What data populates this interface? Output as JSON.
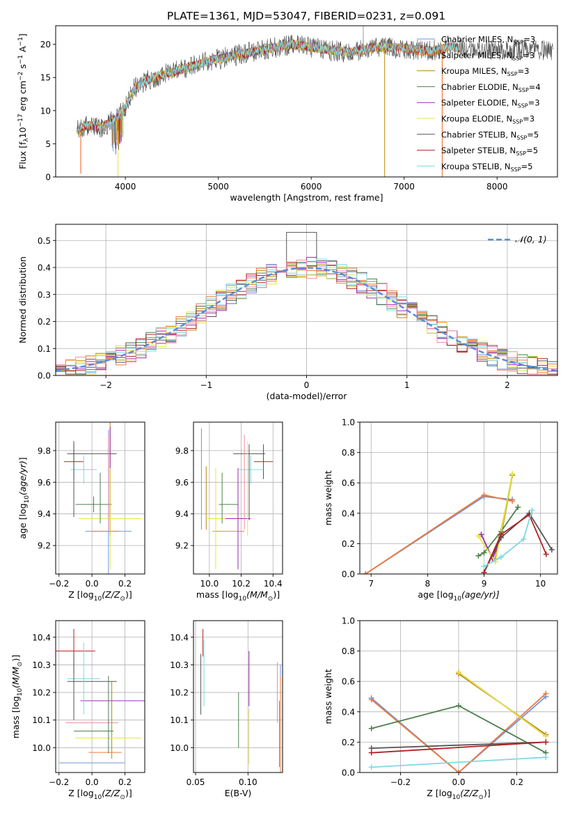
{
  "colors": {
    "chabrier_miles": "#6f95dc",
    "salpeter_miles": "#ef7a3b",
    "kroupa_miles": "#b8860b",
    "chabrier_elodie": "#4c7f4c",
    "salpeter_elodie": "#9c27b0",
    "kroupa_elodie": "#e6e640",
    "chabrier_stelib": "#555555",
    "salpeter_stelib": "#b22222",
    "kroupa_stelib": "#7fd8e0",
    "pink": "#f08aa0",
    "normal_curve": "#5b8bd9",
    "grid": "#b0b0b0"
  },
  "chart_data": [
    {
      "id": "spectrum",
      "type": "line",
      "title": "PLATE=1361, MJD=53047, FIBERID=0231, z=0.091",
      "xlabel": "wavelength [Angstrom, rest frame]",
      "ylabel": "Flux [f_λ10^-17 erg cm^-2 s^-1 A^-1]",
      "xlim": [
        3250,
        8650
      ],
      "ylim": [
        0,
        22.8
      ],
      "xticks": [
        "4000",
        "5000",
        "6000",
        "7000",
        "8000"
      ],
      "yticks": [
        "0",
        "5",
        "10",
        "15",
        "20"
      ],
      "grid": false,
      "legend_position": "top-right",
      "continuum": {
        "x": [
          3480,
          3600,
          3750,
          3900,
          4000,
          4100,
          4300,
          4600,
          4900,
          5200,
          5500,
          5800,
          6100,
          6400,
          6700,
          7000,
          7300,
          7500,
          7700
        ],
        "y": [
          7,
          7.8,
          7.5,
          8.8,
          10.5,
          13.5,
          15,
          16.2,
          17.5,
          18.4,
          19.2,
          20,
          19.3,
          18.8,
          19.6,
          19.4,
          19,
          19.6,
          19.2
        ]
      },
      "series": [
        {
          "name": "Chabrier MILES, N_SSP=3",
          "label_main": "Chabrier MILES, N",
          "label_sub": "SSP",
          "label_tail": "=3",
          "color_key": "chabrier_miles",
          "xmax": 7600
        },
        {
          "name": "Salpeter MILES, N_SSP=3",
          "label_main": "Salpeter MILES, N",
          "label_sub": "SSP",
          "label_tail": "=3",
          "color_key": "salpeter_miles",
          "xmax": 7600
        },
        {
          "name": "Kroupa MILES, N_SSP=3",
          "label_main": "Kroupa MILES, N",
          "label_sub": "SSP",
          "label_tail": "=3",
          "color_key": "kroupa_miles",
          "xmax": 7600
        },
        {
          "name": "Chabrier ELODIE, N_SSP=4",
          "label_main": "Chabrier ELODIE, N",
          "label_sub": "SSP",
          "label_tail": "=4",
          "color_key": "chabrier_elodie",
          "xmax": 6800
        },
        {
          "name": "Salpeter ELODIE, N_SSP=3",
          "label_main": "Salpeter ELODIE, N",
          "label_sub": "SSP",
          "label_tail": "=3",
          "color_key": "salpeter_elodie",
          "xmax": 6800
        },
        {
          "name": "Kroupa ELODIE, N_SSP=3",
          "label_main": "Kroupa ELODIE, N",
          "label_sub": "SSP",
          "label_tail": "=3",
          "color_key": "kroupa_elodie",
          "xmax": 6800
        },
        {
          "name": "Chabrier STELIB, N_SSP=5",
          "label_main": "Chabrier STELIB, N",
          "label_sub": "SSP",
          "label_tail": "=5",
          "color_key": "chabrier_stelib",
          "xmax": 8600
        },
        {
          "name": "Salpeter STELIB, N_SSP=5",
          "label_main": "Salpeter STELIB, N",
          "label_sub": "SSP",
          "label_tail": "=5",
          "color_key": "salpeter_stelib",
          "xmax": 7600
        },
        {
          "name": "Kroupa STELIB, N_SSP=5",
          "label_main": "Kroupa STELIB, N",
          "label_sub": "SSP",
          "label_tail": "=5",
          "color_key": "kroupa_stelib",
          "xmax": 7600
        }
      ]
    },
    {
      "id": "residuals",
      "type": "area",
      "xlabel": "(data-model)/error",
      "ylabel": "Normed distribution",
      "xlim": [
        -2.5,
        2.5
      ],
      "ylim": [
        0,
        0.56
      ],
      "xticks": [
        "−2",
        "−1",
        "0",
        "1",
        "2"
      ],
      "yticks": [
        "0.0",
        "0.1",
        "0.2",
        "0.3",
        "0.4",
        "0.5"
      ],
      "grid": true,
      "legend_position": "top-right",
      "legend": "𝒩(0, 1)",
      "bin_width": 0.1,
      "normal": {
        "mean": 0,
        "sigma": 1
      }
    },
    {
      "id": "z-age",
      "type": "scatter",
      "xlabel": "Z [log10(Z/Z⊙)]",
      "xlabel_main": "Z [log",
      "xlabel_sub": "10",
      "xlabel_tail": "(Z/Z",
      "xlabel_sym": "⊙",
      "xlabel_end": ")]",
      "ylabel": "age [log10(age/yr)]",
      "xlim": [
        -0.22,
        0.32
      ],
      "ylim": [
        9.02,
        9.98
      ],
      "xticks": [
        "−0.2",
        "0.0",
        "0.2"
      ],
      "yticks": [
        "9.2",
        "9.4",
        "9.6",
        "9.8"
      ],
      "grid": true,
      "points": [
        {
          "color_key": "chabrier_miles",
          "x": 0.1,
          "y": 9.29,
          "xerr": 0.14,
          "yerr": 0.64
        },
        {
          "color_key": "salpeter_miles",
          "x": 0.08,
          "y": 9.29,
          "xerr": 0.08,
          "yerr": 0.0
        },
        {
          "color_key": "kroupa_miles",
          "x": 0.11,
          "y": 9.62,
          "xerr": 0.0,
          "yerr": 0.36
        },
        {
          "color_key": "chabrier_elodie",
          "x": 0.01,
          "y": 9.46,
          "xerr": 0.11,
          "yerr": 0.05
        },
        {
          "color_key": "salpeter_elodie",
          "x": 0.11,
          "y": 9.62,
          "xerr": 0.0,
          "yerr": 0.33
        },
        {
          "color_key": "kroupa_elodie",
          "x": 0.11,
          "y": 9.37,
          "xerr": 0.19,
          "yerr": 0.32
        },
        {
          "color_key": "chabrier_stelib",
          "x": 0.0,
          "y": 9.78,
          "xerr": 0.15,
          "yerr": 0.0
        },
        {
          "color_key": "salpeter_stelib",
          "x": -0.11,
          "y": 9.73,
          "xerr": 0.06,
          "yerr": 0.11
        },
        {
          "color_key": "kroupa_stelib",
          "x": -0.05,
          "y": 9.68,
          "xerr": 0.08,
          "yerr": 0.09
        },
        {
          "color_key": "pink",
          "x": 0.1,
          "y": 9.6,
          "xerr": 0.0,
          "yerr": 0.3
        },
        {
          "color_key": "chabrier_stelib",
          "x": -0.11,
          "y": 9.62,
          "xerr": 0.0,
          "yerr": 0.24
        },
        {
          "color_key": "chabrier_elodie",
          "x": 0.05,
          "y": 9.5,
          "xerr": 0.0,
          "yerr": 0.16
        }
      ]
    },
    {
      "id": "mass-age",
      "type": "scatter",
      "xlabel": "mass [log10(M/M⊙)]",
      "xlabel_main": "mass [log",
      "xlabel_sub": "10",
      "xlabel_tail": "(M/M",
      "xlabel_sym": "⊙",
      "xlabel_end": ")]",
      "xlim": [
        9.9,
        10.46
      ],
      "ylim": [
        9.02,
        9.98
      ],
      "xticks": [
        "10.0",
        "10.2",
        "10.4"
      ],
      "yticks": [
        "9.2",
        "9.4",
        "9.6",
        "9.8"
      ],
      "grid": true,
      "points": [
        {
          "color_key": "chabrier_miles",
          "x": 9.95,
          "y": 9.62,
          "xerr": 0.0,
          "yerr": 0.32
        },
        {
          "color_key": "salpeter_miles",
          "x": 10.12,
          "y": 9.29,
          "xerr": 0.1,
          "yerr": 0.0
        },
        {
          "color_key": "kroupa_miles",
          "x": 9.98,
          "y": 9.5,
          "xerr": 0.0,
          "yerr": 0.2
        },
        {
          "color_key": "chabrier_elodie",
          "x": 10.12,
          "y": 9.46,
          "xerr": 0.06,
          "yerr": 0.0
        },
        {
          "color_key": "salpeter_elodie",
          "x": 10.18,
          "y": 9.37,
          "xerr": 0.08,
          "yerr": 0.32
        },
        {
          "color_key": "kroupa_elodie",
          "x": 10.04,
          "y": 9.37,
          "xerr": 0.06,
          "yerr": 0.32
        },
        {
          "color_key": "chabrier_stelib",
          "x": 10.25,
          "y": 9.78,
          "xerr": 0.1,
          "yerr": 0.0
        },
        {
          "color_key": "salpeter_stelib",
          "x": 10.34,
          "y": 9.73,
          "xerr": 0.06,
          "yerr": 0.11
        },
        {
          "color_key": "kroupa_stelib",
          "x": 10.26,
          "y": 9.68,
          "xerr": 0.08,
          "yerr": 0.09
        },
        {
          "color_key": "pink",
          "x": 10.22,
          "y": 9.6,
          "xerr": 0.0,
          "yerr": 0.3
        },
        {
          "color_key": "chabrier_stelib",
          "x": 10.25,
          "y": 9.6,
          "xerr": 0.0,
          "yerr": 0.24
        },
        {
          "color_key": "chabrier_elodie",
          "x": 10.08,
          "y": 9.5,
          "xerr": 0.0,
          "yerr": 0.16
        },
        {
          "color_key": "kroupa_elodie",
          "x": 10.24,
          "y": 9.56,
          "xerr": 0.0,
          "yerr": 0.3
        }
      ]
    },
    {
      "id": "age-weight",
      "type": "line",
      "xlabel": "age [log10(age/yr)]",
      "xlabel_main": "age  [log",
      "xlabel_sub": "10",
      "xlabel_tail": "(age/yr)]",
      "ylabel": "mass weight",
      "xlim": [
        6.8,
        10.3
      ],
      "ylim": [
        0,
        1.0
      ],
      "xticks": [
        "7",
        "8",
        "9",
        "10"
      ],
      "yticks": [
        "0.0",
        "0.2",
        "0.4",
        "0.6",
        "0.8",
        "1.0"
      ],
      "grid": true,
      "series": [
        {
          "color_key": "chabrier_miles",
          "x": [
            6.9,
            9.0,
            9.5
          ],
          "y": [
            0.0,
            0.51,
            0.49
          ]
        },
        {
          "color_key": "salpeter_miles",
          "x": [
            6.9,
            9.0,
            9.5
          ],
          "y": [
            0.0,
            0.52,
            0.48
          ]
        },
        {
          "color_key": "kroupa_miles",
          "x": [
            9.2,
            9.5,
            9.3
          ],
          "y": [
            0.1,
            0.65,
            0.25
          ]
        },
        {
          "color_key": "chabrier_elodie",
          "x": [
            8.9,
            9.0,
            9.3,
            9.6
          ],
          "y": [
            0.12,
            0.14,
            0.28,
            0.44
          ]
        },
        {
          "color_key": "salpeter_elodie",
          "x": [
            8.95,
            9.15,
            9.3
          ],
          "y": [
            0.26,
            0.1,
            0.24
          ]
        },
        {
          "color_key": "kroupa_elodie",
          "x": [
            8.9,
            9.2,
            9.5
          ],
          "y": [
            0.25,
            0.08,
            0.66
          ]
        },
        {
          "color_key": "chabrier_stelib",
          "x": [
            9.0,
            9.3,
            9.8,
            10.2
          ],
          "y": [
            0.01,
            0.24,
            0.4,
            0.16
          ]
        },
        {
          "color_key": "salpeter_stelib",
          "x": [
            9.0,
            9.3,
            9.8,
            10.1
          ],
          "y": [
            0.01,
            0.26,
            0.39,
            0.13
          ]
        },
        {
          "color_key": "kroupa_stelib",
          "x": [
            9.0,
            9.3,
            9.7,
            9.85
          ],
          "y": [
            0.05,
            0.11,
            0.23,
            0.42
          ]
        }
      ]
    },
    {
      "id": "z-mass",
      "type": "scatter",
      "xlabel": "Z [log10(Z/Z⊙)]",
      "xlabel_main": "Z [log",
      "xlabel_sub": "10",
      "xlabel_tail": "(Z/Z",
      "xlabel_sym": "⊙",
      "xlabel_end": ")]",
      "ylabel": "mass [log10(M/M⊙)]",
      "xlim": [
        -0.22,
        0.32
      ],
      "ylim": [
        9.91,
        10.46
      ],
      "xticks": [
        "−0.2",
        "0.0",
        "0.2"
      ],
      "yticks": [
        "10.0",
        "10.1",
        "10.2",
        "10.3",
        "10.4"
      ],
      "grid": true,
      "points": [
        {
          "color_key": "chabrier_miles",
          "x": 0.0,
          "y": 9.945,
          "xerr": 0.2,
          "yerr": 0.0
        },
        {
          "color_key": "salpeter_miles",
          "x": 0.08,
          "y": 9.983,
          "xerr": 0.1,
          "yerr": 0.0
        },
        {
          "color_key": "kroupa_miles",
          "x": 0.12,
          "y": 10.1,
          "xerr": 0.0,
          "yerr": 0.14
        },
        {
          "color_key": "chabrier_elodie",
          "x": 0.01,
          "y": 10.06,
          "xerr": 0.12,
          "yerr": 0.0
        },
        {
          "color_key": "salpeter_elodie",
          "x": 0.13,
          "y": 10.17,
          "xerr": 0.2,
          "yerr": 0.0
        },
        {
          "color_key": "kroupa_elodie",
          "x": 0.1,
          "y": 10.035,
          "xerr": 0.2,
          "yerr": 0.0
        },
        {
          "color_key": "chabrier_stelib",
          "x": 0.0,
          "y": 10.24,
          "xerr": 0.15,
          "yerr": 0.0
        },
        {
          "color_key": "salpeter_stelib",
          "x": -0.11,
          "y": 10.35,
          "xerr": 0.13,
          "yerr": 0.08
        },
        {
          "color_key": "kroupa_stelib",
          "x": -0.05,
          "y": 10.25,
          "xerr": 0.1,
          "yerr": 0.13
        },
        {
          "color_key": "pink",
          "x": 0.0,
          "y": 10.09,
          "xerr": 0.16,
          "yerr": 0.0
        },
        {
          "color_key": "chabrier_stelib",
          "x": -0.11,
          "y": 10.22,
          "xerr": 0.0,
          "yerr": 0.12
        },
        {
          "color_key": "chabrier_elodie",
          "x": 0.1,
          "y": 10.12,
          "xerr": 0.0,
          "yerr": 0.14
        }
      ]
    },
    {
      "id": "ebv-mass",
      "type": "scatter",
      "xlabel": "E(B-V)",
      "xlim": [
        0.048,
        0.133
      ],
      "ylim": [
        9.91,
        10.46
      ],
      "xticks": [
        "0.05",
        "0.10"
      ],
      "yticks": [
        "10.0",
        "10.1",
        "10.2",
        "10.3",
        "10.4"
      ],
      "grid": true,
      "points": [
        {
          "color_key": "chabrier_miles",
          "x": 0.131,
          "y": 10.12,
          "xerr": 0.0,
          "yerr": 0.18
        },
        {
          "color_key": "salpeter_miles",
          "x": 0.131,
          "y": 10.08,
          "xerr": 0.0,
          "yerr": 0.18
        },
        {
          "color_key": "kroupa_miles",
          "x": 0.13,
          "y": 10.05,
          "xerr": 0.0,
          "yerr": 0.12
        },
        {
          "color_key": "chabrier_elodie",
          "x": 0.091,
          "y": 10.1,
          "xerr": 0.0,
          "yerr": 0.1
        },
        {
          "color_key": "salpeter_elodie",
          "x": 0.101,
          "y": 10.25,
          "xerr": 0.0,
          "yerr": 0.1
        },
        {
          "color_key": "kroupa_elodie",
          "x": 0.101,
          "y": 10.04,
          "xerr": 0.0,
          "yerr": 0.1
        },
        {
          "color_key": "chabrier_stelib",
          "x": 0.055,
          "y": 10.23,
          "xerr": 0.0,
          "yerr": 0.11
        },
        {
          "color_key": "salpeter_stelib",
          "x": 0.057,
          "y": 10.38,
          "xerr": 0.0,
          "yerr": 0.05
        },
        {
          "color_key": "kroupa_stelib",
          "x": 0.058,
          "y": 10.27,
          "xerr": 0.0,
          "yerr": 0.12
        },
        {
          "color_key": "pink",
          "x": 0.128,
          "y": 10.2,
          "xerr": 0.0,
          "yerr": 0.11
        }
      ]
    },
    {
      "id": "z-weight",
      "type": "line",
      "xlabel": "Z [log10(Z/Z⊙)]",
      "xlabel_main": "Z [log",
      "xlabel_sub": "10",
      "xlabel_tail": "(Z/Z",
      "xlabel_sym": "⊙",
      "xlabel_end": ")]",
      "ylabel": "mass weight",
      "xlim": [
        -0.34,
        0.34
      ],
      "ylim": [
        0,
        1.0
      ],
      "xticks": [
        "−0.2",
        "0.0",
        "0.2"
      ],
      "yticks": [
        "0.0",
        "0.2",
        "0.4",
        "0.6",
        "0.8",
        "1.0"
      ],
      "grid": true,
      "series": [
        {
          "color_key": "chabrier_miles",
          "x": [
            -0.3,
            0.0,
            0.3
          ],
          "y": [
            0.49,
            0.0,
            0.5
          ]
        },
        {
          "color_key": "salpeter_miles",
          "x": [
            -0.3,
            0.0,
            0.3
          ],
          "y": [
            0.48,
            0.0,
            0.52
          ]
        },
        {
          "color_key": "kroupa_miles",
          "x": [
            0.0,
            0.3
          ],
          "y": [
            0.65,
            0.25
          ]
        },
        {
          "color_key": "chabrier_elodie",
          "x": [
            -0.3,
            0.0,
            0.3
          ],
          "y": [
            0.29,
            0.44,
            0.13
          ]
        },
        {
          "color_key": "salpeter_elodie",
          "x": [
            0.0,
            0.3
          ],
          "y": [
            0.66,
            0.24
          ]
        },
        {
          "color_key": "kroupa_elodie",
          "x": [
            0.0,
            0.3
          ],
          "y": [
            0.66,
            0.24
          ]
        },
        {
          "color_key": "chabrier_stelib",
          "x": [
            -0.3,
            0.3
          ],
          "y": [
            0.16,
            0.2
          ]
        },
        {
          "color_key": "salpeter_stelib",
          "x": [
            -0.3,
            0.3
          ],
          "y": [
            0.13,
            0.2
          ]
        },
        {
          "color_key": "kroupa_stelib",
          "x": [
            -0.3,
            0.3
          ],
          "y": [
            0.035,
            0.1
          ]
        }
      ]
    }
  ]
}
